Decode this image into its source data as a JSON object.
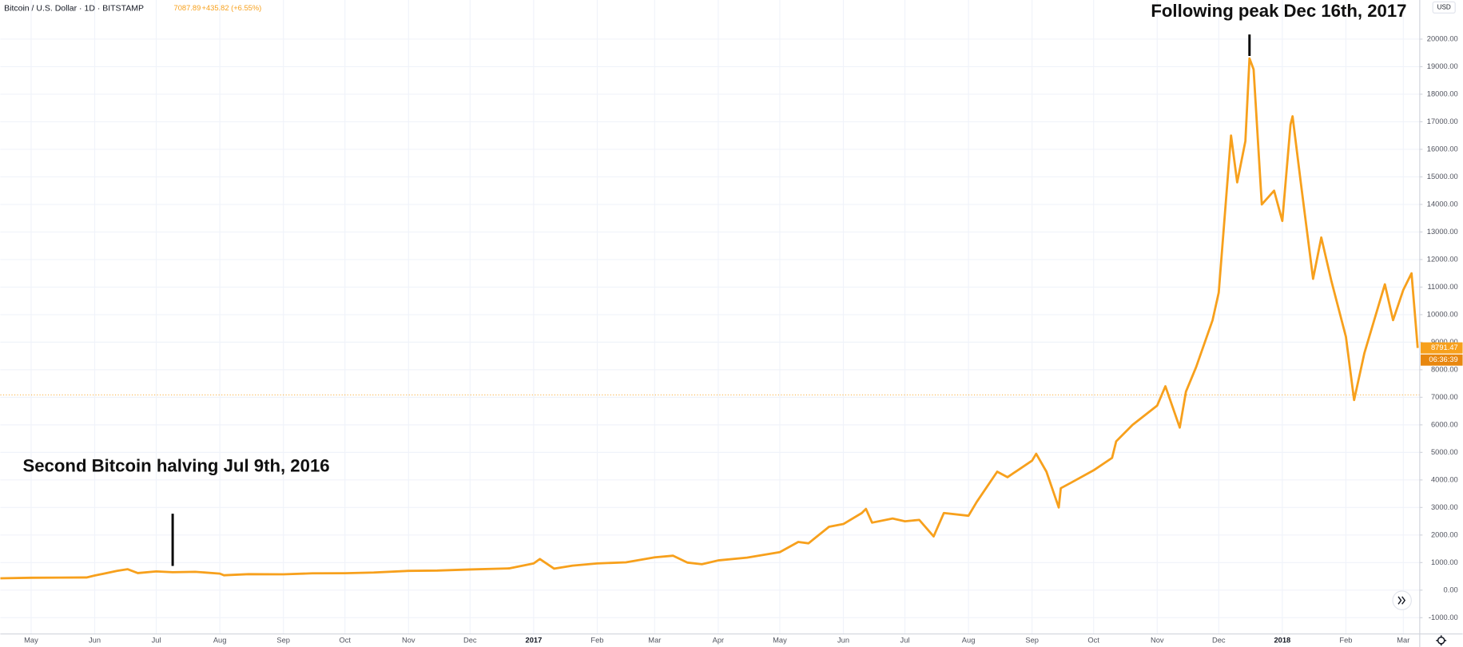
{
  "chart_data": {
    "type": "line",
    "symbol": "Bitcoin / U.S. Dollar · 1D · BITSTAMP",
    "price_line": 7087.89,
    "price_change": "+435.82 (+6.55%)",
    "currency": "USD",
    "countdown": "06:36:39",
    "color": "#f7a01c",
    "grid": true,
    "annotations": [
      {
        "text": "Second Bitcoin halving Jul 9th, 2016",
        "x": "2016-07-09"
      },
      {
        "text": "Following peak Dec 16th, 2017",
        "x": "2017-12-16"
      }
    ],
    "x": [
      "2016-04-16",
      "2016-05-01",
      "2016-05-15",
      "2016-05-28",
      "2016-06-01",
      "2016-06-12",
      "2016-06-17",
      "2016-06-22",
      "2016-07-01",
      "2016-07-09",
      "2016-07-20",
      "2016-08-01",
      "2016-08-03",
      "2016-08-15",
      "2016-09-01",
      "2016-09-15",
      "2016-10-01",
      "2016-10-15",
      "2016-11-01",
      "2016-11-15",
      "2016-12-01",
      "2016-12-20",
      "2017-01-01",
      "2017-01-04",
      "2017-01-11",
      "2017-01-20",
      "2017-02-01",
      "2017-02-15",
      "2017-03-01",
      "2017-03-10",
      "2017-03-17",
      "2017-03-24",
      "2017-04-01",
      "2017-04-15",
      "2017-05-01",
      "2017-05-10",
      "2017-05-15",
      "2017-05-25",
      "2017-06-01",
      "2017-06-10",
      "2017-06-12",
      "2017-06-15",
      "2017-06-25",
      "2017-07-01",
      "2017-07-08",
      "2017-07-15",
      "2017-07-20",
      "2017-08-01",
      "2017-08-05",
      "2017-08-15",
      "2017-08-20",
      "2017-09-01",
      "2017-09-03",
      "2017-09-08",
      "2017-09-14",
      "2017-09-15",
      "2017-09-20",
      "2017-10-01",
      "2017-10-10",
      "2017-10-12",
      "2017-10-20",
      "2017-11-01",
      "2017-11-05",
      "2017-11-12",
      "2017-11-15",
      "2017-11-20",
      "2017-11-28",
      "2017-12-01",
      "2017-12-07",
      "2017-12-10",
      "2017-12-14",
      "2017-12-16",
      "2017-12-18",
      "2017-12-22",
      "2017-12-28",
      "2018-01-01",
      "2018-01-05",
      "2018-01-06",
      "2018-01-10",
      "2018-01-16",
      "2018-01-20",
      "2018-01-25",
      "2018-02-01",
      "2018-02-05",
      "2018-02-10",
      "2018-02-20",
      "2018-02-24",
      "2018-03-01",
      "2018-03-05",
      "2018-03-08"
    ],
    "values": [
      430,
      450,
      455,
      460,
      530,
      700,
      760,
      620,
      680,
      650,
      665,
      600,
      540,
      580,
      575,
      610,
      615,
      640,
      700,
      710,
      750,
      790,
      970,
      1130,
      780,
      890,
      970,
      1010,
      1190,
      1250,
      1000,
      940,
      1080,
      1180,
      1380,
      1750,
      1700,
      2300,
      2400,
      2800,
      2950,
      2450,
      2600,
      2500,
      2550,
      1950,
      2800,
      2700,
      3200,
      4300,
      4100,
      4700,
      4950,
      4300,
      3000,
      3700,
      3900,
      4350,
      4800,
      5400,
      6000,
      6700,
      7400,
      5900,
      7200,
      8100,
      9800,
      10800,
      16500,
      14800,
      16300,
      19300,
      18900,
      14000,
      14500,
      13400,
      16900,
      17200,
      14800,
      11300,
      12800,
      11200,
      9200,
      6900,
      8600,
      11100,
      9800,
      10900,
      11500,
      8791.47
    ],
    "xlim": [
      "2016-04-16",
      "2018-03-09"
    ],
    "xticks": [
      {
        "value": "2016-05-01",
        "label": "May"
      },
      {
        "value": "2016-06-01",
        "label": "Jun"
      },
      {
        "value": "2016-07-01",
        "label": "Jul"
      },
      {
        "value": "2016-08-01",
        "label": "Aug"
      },
      {
        "value": "2016-09-01",
        "label": "Sep"
      },
      {
        "value": "2016-10-01",
        "label": "Oct"
      },
      {
        "value": "2016-11-01",
        "label": "Nov"
      },
      {
        "value": "2016-12-01",
        "label": "Dec"
      },
      {
        "value": "2017-01-01",
        "label": "2017"
      },
      {
        "value": "2017-02-01",
        "label": "Feb"
      },
      {
        "value": "2017-03-01",
        "label": "Mar"
      },
      {
        "value": "2017-04-01",
        "label": "Apr"
      },
      {
        "value": "2017-05-01",
        "label": "May"
      },
      {
        "value": "2017-06-01",
        "label": "Jun"
      },
      {
        "value": "2017-07-01",
        "label": "Jul"
      },
      {
        "value": "2017-08-01",
        "label": "Aug"
      },
      {
        "value": "2017-09-01",
        "label": "Sep"
      },
      {
        "value": "2017-10-01",
        "label": "Oct"
      },
      {
        "value": "2017-11-01",
        "label": "Nov"
      },
      {
        "value": "2017-12-01",
        "label": "Dec"
      },
      {
        "value": "2018-01-01",
        "label": "2018"
      },
      {
        "value": "2018-02-01",
        "label": "Feb"
      },
      {
        "value": "2018-03-01",
        "label": "Mar"
      }
    ],
    "ylim": [
      -1590,
      21420
    ],
    "yticks": [
      {
        "value": -1000,
        "label": "-1000.00"
      },
      {
        "value": 0,
        "label": "0.00"
      },
      {
        "value": 1000,
        "label": "1000.00"
      },
      {
        "value": 2000,
        "label": "2000.00"
      },
      {
        "value": 3000,
        "label": "3000.00"
      },
      {
        "value": 4000,
        "label": "4000.00"
      },
      {
        "value": 5000,
        "label": "5000.00"
      },
      {
        "value": 6000,
        "label": "6000.00"
      },
      {
        "value": 7000,
        "label": "7000.00"
      },
      {
        "value": 8000,
        "label": "8000.00"
      },
      {
        "value": 9000,
        "label": "9000.00"
      },
      {
        "value": 10000,
        "label": "10000.00"
      },
      {
        "value": 11000,
        "label": "11000.00"
      },
      {
        "value": 12000,
        "label": "12000.00"
      },
      {
        "value": 13000,
        "label": "13000.00"
      },
      {
        "value": 14000,
        "label": "14000.00"
      },
      {
        "value": 15000,
        "label": "15000.00"
      },
      {
        "value": 16000,
        "label": "16000.00"
      },
      {
        "value": 17000,
        "label": "17000.00"
      },
      {
        "value": 18000,
        "label": "18000.00"
      },
      {
        "value": 19000,
        "label": "19000.00"
      },
      {
        "value": 20000,
        "label": "20000.00"
      }
    ]
  }
}
